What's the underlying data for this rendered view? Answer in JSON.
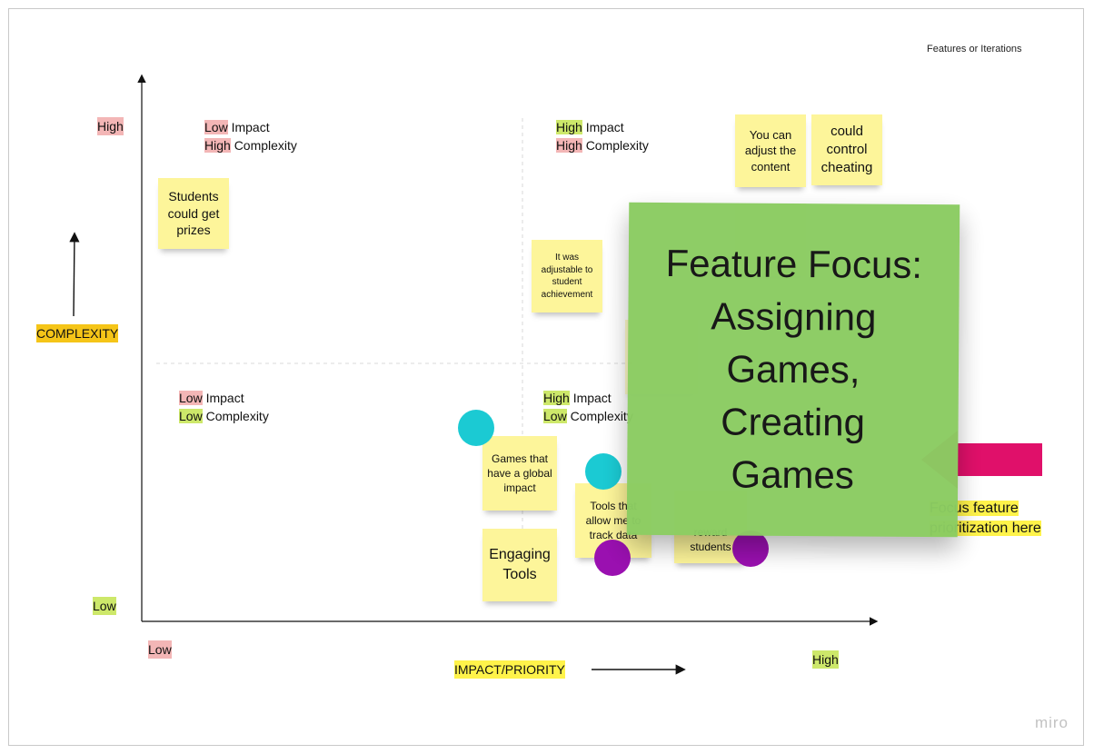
{
  "header": {
    "legend_title": "Features or Iterations"
  },
  "axes": {
    "y_title": "COMPLEXITY",
    "y_high": "High",
    "y_low": "Low",
    "x_title": "IMPACT/PRIORITY",
    "x_low": "Low",
    "x_high": "High"
  },
  "quadrants": {
    "top_left": {
      "impact_level": "Low",
      "impact_word": "Impact",
      "complexity_level": "High",
      "complexity_word": "Complexity"
    },
    "top_right": {
      "impact_level": "High",
      "impact_word": "Impact",
      "complexity_level": "High",
      "complexity_word": "Complexity"
    },
    "bottom_left": {
      "impact_level": "Low",
      "impact_word": "Impact",
      "complexity_level": "Low",
      "complexity_word": "Complexity"
    },
    "bottom_right": {
      "impact_level": "High",
      "impact_word": "Impact",
      "complexity_level": "Low",
      "complexity_word": "Complexity"
    }
  },
  "stickies": {
    "prizes": "Students could get prizes",
    "adjustable": "It was adjustable to student achievement",
    "adjust_content": "You can adjust the content",
    "control_cheating": "could control cheating",
    "global_impact": "Games that have a global impact",
    "engaging_tools": "Engaging Tools",
    "track_data": "Tools that allow me to track data",
    "reward_students": "reward students"
  },
  "focus_card": {
    "line1": "Feature Focus:",
    "line2": "Assigning",
    "line3": "Games,",
    "line4": "Creating",
    "line5": "Games"
  },
  "callout": {
    "line1": "Focus feature",
    "line2": "prioritization here"
  },
  "watermark": "miro",
  "colors": {
    "cyan_dot": "#1bcad3",
    "purple_dot": "#9a10b0",
    "pink_arrow": "#e0106a",
    "focus_card": "#8bcc62",
    "sticky": "#fdf59a"
  }
}
